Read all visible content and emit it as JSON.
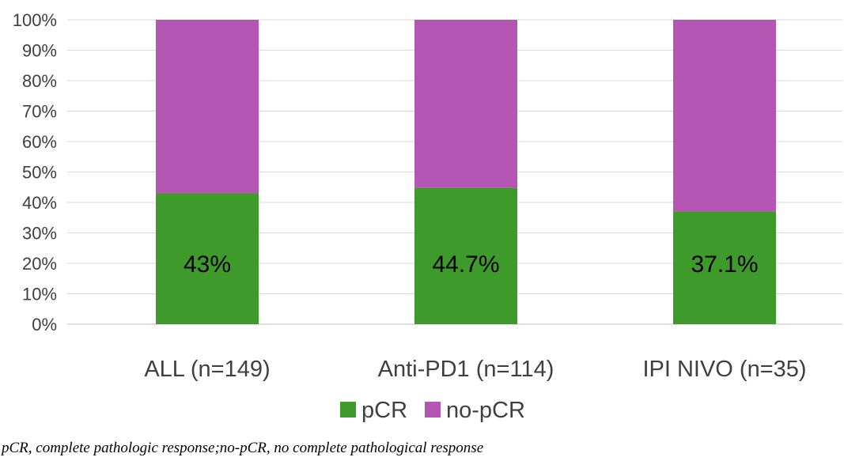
{
  "chart_data": {
    "type": "bar",
    "stacked": true,
    "categories": [
      "ALL (n=149)",
      "Anti-PD1 (n=114)",
      "IPI NIVO (n=35)"
    ],
    "series": [
      {
        "name": "pCR",
        "values": [
          43,
          44.7,
          37.1
        ],
        "color": "#3f9a2c"
      },
      {
        "name": "no-pCR",
        "values": [
          57,
          55.3,
          62.9
        ],
        "color": "#b556b5"
      }
    ],
    "data_labels": [
      "43%",
      "44.7%",
      "37.1%"
    ],
    "y_ticks": [
      "0%",
      "10%",
      "20%",
      "30%",
      "40%",
      "50%",
      "60%",
      "70%",
      "80%",
      "90%",
      "100%"
    ],
    "ylim": [
      0,
      100
    ],
    "grid": true,
    "legend_position": "bottom-center"
  },
  "caption": "pCR, complete pathologic response;no-pCR, no complete pathological response"
}
